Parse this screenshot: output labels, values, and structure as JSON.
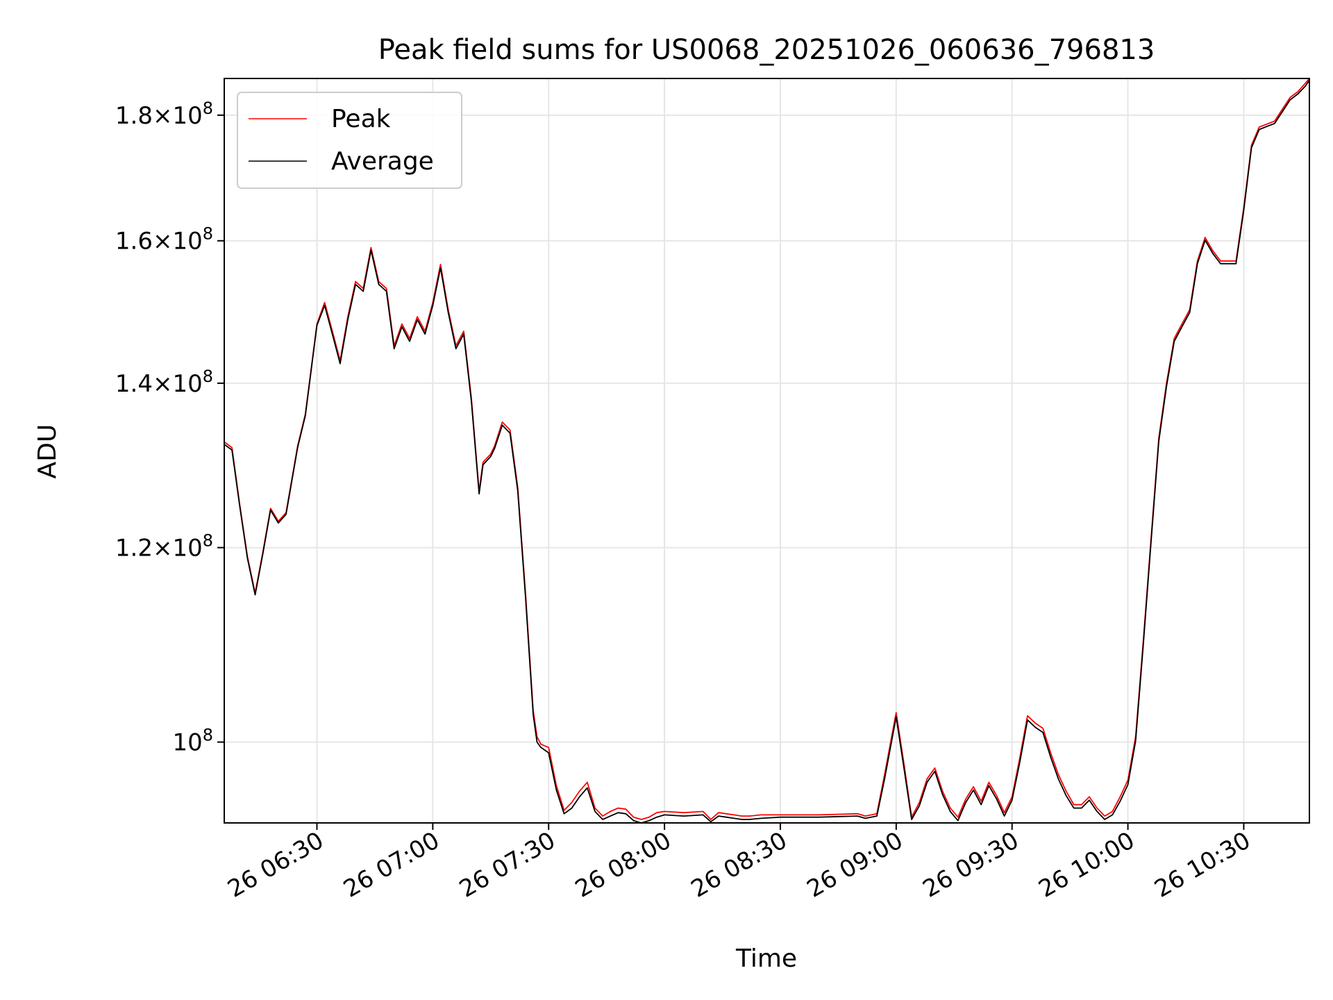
{
  "chart_data": {
    "type": "line",
    "title": "Peak field sums for US0068_20251026_060636_796813",
    "xlabel": "Time",
    "ylabel": "ADU",
    "yscale": "log",
    "grid": true,
    "legend_position": "upper-left",
    "xlim": [
      "2025-10-26 06:06",
      "2025-10-26 10:47"
    ],
    "ylim": [
      92700000,
      186300000
    ],
    "x_ticks": [
      "26 06:30",
      "26 07:00",
      "26 07:30",
      "26 08:00",
      "26 08:30",
      "26 09:00",
      "26 09:30",
      "26 10:00",
      "26 10:30"
    ],
    "y_ticks": [
      {
        "value": 100000000,
        "mantissa": "",
        "exponent": "8"
      },
      {
        "value": 120000000,
        "mantissa": "1.2",
        "exponent": "8"
      },
      {
        "value": 140000000,
        "mantissa": "1.4",
        "exponent": "8"
      },
      {
        "value": 160000000,
        "mantissa": "1.6",
        "exponent": "8"
      },
      {
        "value": 180000000,
        "mantissa": "1.8",
        "exponent": "8"
      }
    ],
    "x": [
      "06:06",
      "06:08",
      "06:10",
      "06:12",
      "06:14",
      "06:16",
      "06:18",
      "06:20",
      "06:22",
      "06:25",
      "06:27",
      "06:30",
      "06:32",
      "06:34",
      "06:36",
      "06:38",
      "06:40",
      "06:42",
      "06:44",
      "06:46",
      "06:48",
      "06:50",
      "06:52",
      "06:54",
      "06:56",
      "06:58",
      "07:00",
      "07:02",
      "07:04",
      "07:06",
      "07:08",
      "07:10",
      "07:12",
      "07:13",
      "07:15",
      "07:16",
      "07:18",
      "07:20",
      "07:22",
      "07:24",
      "07:26",
      "07:27",
      "07:28",
      "07:30",
      "07:32",
      "07:34",
      "07:36",
      "07:38",
      "07:40",
      "07:42",
      "07:44",
      "07:46",
      "07:48",
      "07:50",
      "07:52",
      "07:54",
      "07:56",
      "07:58",
      "08:00",
      "08:05",
      "08:10",
      "08:12",
      "08:14",
      "08:16",
      "08:18",
      "08:20",
      "08:22",
      "08:25",
      "08:30",
      "08:40",
      "08:50",
      "08:52",
      "08:55",
      "08:57",
      "09:00",
      "09:02",
      "09:04",
      "09:06",
      "09:08",
      "09:10",
      "09:12",
      "09:14",
      "09:16",
      "09:18",
      "09:20",
      "09:22",
      "09:24",
      "09:26",
      "09:28",
      "09:30",
      "09:32",
      "09:34",
      "09:36",
      "09:38",
      "09:40",
      "09:42",
      "09:44",
      "09:46",
      "09:48",
      "09:50",
      "09:52",
      "09:54",
      "09:56",
      "09:58",
      "10:00",
      "10:02",
      "10:04",
      "10:06",
      "10:08",
      "10:10",
      "10:12",
      "10:14",
      "10:16",
      "10:18",
      "10:20",
      "10:22",
      "10:24",
      "10:26",
      "10:28",
      "10:30",
      "10:32",
      "10:34",
      "10:36",
      "10:38",
      "10:40",
      "10:42",
      "10:44",
      "10:46",
      "10:47"
    ],
    "series": [
      {
        "name": "Peak",
        "color": "#ff0000",
        "values": [
          132.5,
          131.8,
          125.0,
          119.0,
          115.0,
          119.5,
          124.5,
          123.0,
          124.0,
          132.0,
          136.0,
          148.0,
          151.0,
          147.0,
          143.0,
          149.0,
          154.0,
          153.0,
          159.0,
          154.0,
          153.0,
          145.0,
          148.0,
          146.0,
          149.0,
          147.0,
          151.0,
          156.5,
          150.0,
          145.0,
          147.0,
          138.0,
          126.5,
          130.0,
          131.0,
          132.0,
          135.0,
          134.0,
          127.0,
          115.0,
          103.0,
          100.5,
          99.8,
          99.5,
          96.0,
          93.8,
          94.5,
          95.5,
          96.3,
          94.0,
          93.3,
          93.7,
          94.0,
          93.9,
          93.2,
          93.0,
          93.2,
          93.6,
          93.7,
          93.6,
          93.7,
          93.0,
          93.6,
          93.5,
          93.4,
          93.3,
          93.3,
          93.4,
          93.4,
          93.4,
          93.5,
          93.3,
          93.5,
          97.0,
          102.8,
          98.0,
          93.2,
          94.5,
          96.6,
          97.6,
          95.5,
          94.0,
          93.2,
          94.8,
          95.9,
          94.6,
          96.3,
          95.1,
          93.6,
          95.0,
          98.5,
          102.5,
          101.8,
          101.3,
          99.0,
          97.0,
          95.5,
          94.3,
          94.3,
          95.0,
          94.0,
          93.3,
          93.7,
          95.0,
          96.5,
          100.5,
          110.0,
          121.0,
          133.0,
          140.0,
          146.0,
          148.0,
          150.0,
          157.0,
          160.5,
          158.5,
          157.0,
          157.0,
          157.0,
          165.0,
          175.0,
          178.0,
          178.5,
          179.0,
          181.0,
          183.0,
          184.0,
          185.5,
          186.3
        ]
      },
      {
        "name": "Average",
        "color": "#000000",
        "values": [
          132.2,
          131.5,
          124.8,
          118.8,
          114.8,
          119.3,
          124.3,
          122.8,
          123.8,
          131.8,
          135.8,
          147.8,
          150.6,
          146.6,
          142.6,
          148.6,
          153.6,
          152.6,
          158.6,
          153.6,
          152.6,
          144.6,
          147.6,
          145.6,
          148.6,
          146.6,
          150.6,
          156.0,
          149.6,
          144.6,
          146.6,
          137.6,
          126.2,
          129.7,
          130.7,
          131.7,
          134.6,
          133.6,
          126.6,
          114.6,
          102.6,
          100.0,
          99.5,
          99.0,
          95.6,
          93.5,
          94.0,
          95.0,
          95.8,
          93.7,
          93.0,
          93.3,
          93.6,
          93.5,
          92.9,
          92.7,
          92.9,
          93.2,
          93.4,
          93.3,
          93.4,
          92.8,
          93.3,
          93.2,
          93.1,
          93.0,
          93.0,
          93.1,
          93.2,
          93.2,
          93.3,
          93.1,
          93.3,
          96.6,
          102.4,
          97.6,
          93.0,
          94.2,
          96.3,
          97.3,
          95.2,
          93.7,
          92.9,
          94.5,
          95.6,
          94.3,
          96.0,
          94.8,
          93.3,
          94.7,
          98.1,
          102.1,
          101.4,
          100.9,
          98.6,
          96.6,
          95.1,
          94.0,
          94.0,
          94.7,
          93.7,
          93.0,
          93.4,
          94.6,
          96.1,
          100.1,
          109.6,
          120.6,
          132.6,
          139.6,
          145.6,
          147.6,
          149.6,
          156.6,
          160.1,
          158.1,
          156.6,
          156.6,
          156.6,
          164.6,
          174.6,
          177.6,
          178.1,
          178.6,
          180.6,
          182.6,
          183.6,
          185.0,
          186.0
        ]
      }
    ],
    "value_unit_multiplier": 1000000
  }
}
